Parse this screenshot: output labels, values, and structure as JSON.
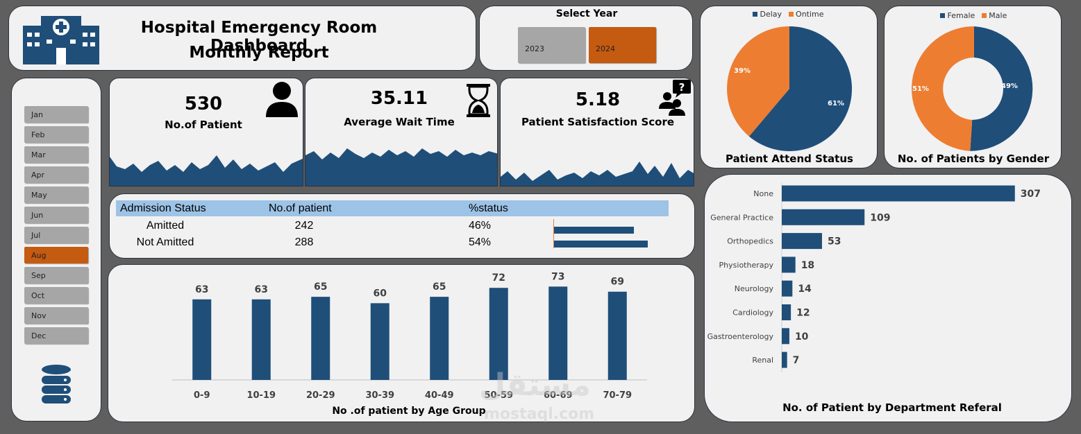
{
  "header": {
    "title_line1": "Hospital Emergency Room Dashboard",
    "title_line2": "Monthly Report",
    "icon": "hospital-icon"
  },
  "year_selector": {
    "title": "Select Year",
    "years": [
      "2023",
      "2024"
    ],
    "selected": "2024"
  },
  "months": [
    "Jan",
    "Feb",
    "Mar",
    "Apr",
    "May",
    "Jun",
    "Jul",
    "Aug",
    "Sep",
    "Oct",
    "Nov",
    "Dec"
  ],
  "selected_month": "Aug",
  "database_icon": "database-icon",
  "kpis": [
    {
      "value": "530",
      "label": "No.of Patient",
      "icon": "person-icon"
    },
    {
      "value": "35.11",
      "label": "Average Wait Time",
      "icon": "hourglass-icon"
    },
    {
      "value": "5.18",
      "label": "Patient Satisfaction Score",
      "icon": "people-question-icon"
    }
  ],
  "admission": {
    "headers": [
      "Admission Status",
      "No.of patient",
      "%status"
    ],
    "rows": [
      {
        "status": "Amitted",
        "count": "242",
        "pct": "46%",
        "fraction": 0.46
      },
      {
        "status": "Not Amitted",
        "count": "288",
        "pct": "54%",
        "fraction": 0.54
      }
    ]
  },
  "attend_chart": {
    "title": "Patient Attend Status",
    "legend": [
      "Delay",
      "Ontime"
    ],
    "labels": [
      "61%",
      "39%"
    ]
  },
  "gender_chart": {
    "title": "No. of Patients by Gender",
    "legend": [
      "Female",
      "Male"
    ],
    "labels": [
      "49%",
      "51%"
    ]
  },
  "age_chart": {
    "title": "No .of patient by Age Group"
  },
  "dept_chart": {
    "title": "No. of Patient by Department Referal"
  },
  "watermark": {
    "arabic": "مستقل",
    "latin": "mostaql.com"
  },
  "colors": {
    "navy": "#1f4e79",
    "orange": "#ed7d31",
    "selected": "#c55a11",
    "button": "#a6a6a6",
    "table_header": "#9dc3e6"
  },
  "chart_data": [
    {
      "type": "pie",
      "categories": [
        "Delay",
        "Ontime"
      ],
      "values": [
        61,
        39
      ]
    },
    {
      "type": "pie",
      "categories": [
        "Female",
        "Male"
      ],
      "values": [
        49,
        51
      ]
    },
    {
      "type": "bar",
      "title": "No .of patient by Age Group",
      "categories": [
        "0-9",
        "10-19",
        "20-29",
        "30-39",
        "40-49",
        "50-59",
        "60-69",
        "70-79"
      ],
      "values": [
        63,
        63,
        65,
        60,
        65,
        72,
        73,
        69
      ]
    },
    {
      "type": "bar",
      "title": "No. of Patient by Department Referal",
      "categories": [
        "None",
        "General Practice",
        "Orthopedics",
        "Physiotherapy",
        "Neurology",
        "Cardiology",
        "Gastroenterology",
        "Renal"
      ],
      "values": [
        307,
        109,
        53,
        18,
        14,
        12,
        10,
        7
      ]
    }
  ]
}
